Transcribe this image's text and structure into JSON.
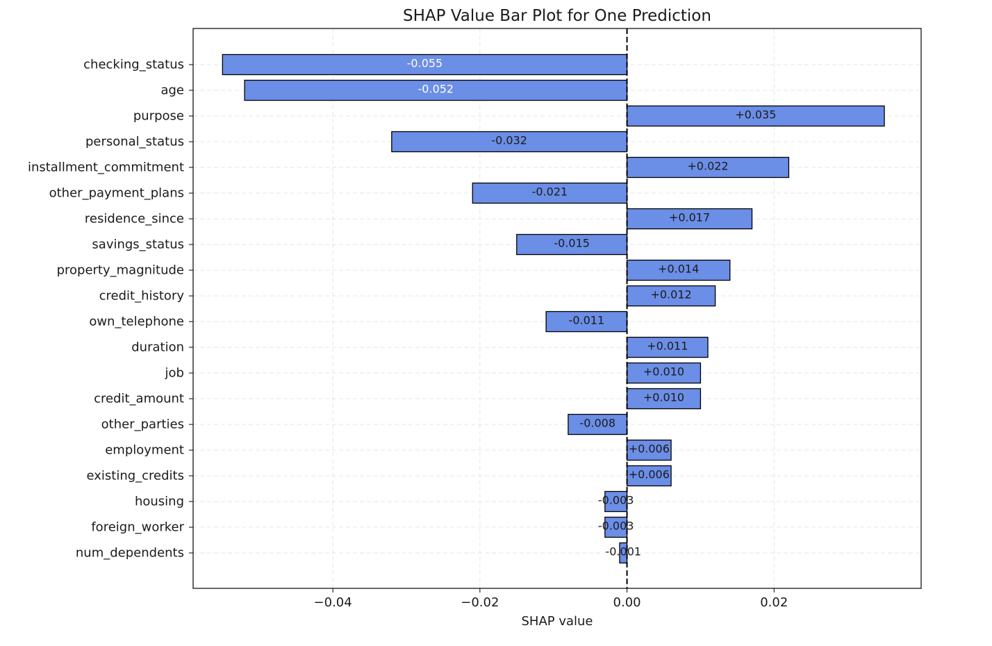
{
  "chart_data": {
    "type": "bar",
    "orientation": "horizontal",
    "title": "SHAP Value Bar Plot for One Prediction",
    "xlabel": "SHAP value",
    "ylabel": "",
    "xlim": [
      -0.059,
      0.04
    ],
    "xticks": [
      -0.04,
      -0.02,
      0.0,
      0.02
    ],
    "xtick_labels": [
      "−0.04",
      "−0.02",
      "0.00",
      "0.02"
    ],
    "grid": true,
    "zero_line": "dashed",
    "bar_color": "#6b8ee6",
    "bar_edge_color": "#000000",
    "categories": [
      "checking_status",
      "age",
      "purpose",
      "personal_status",
      "installment_commitment",
      "other_payment_plans",
      "residence_since",
      "savings_status",
      "property_magnitude",
      "credit_history",
      "own_telephone",
      "duration",
      "job",
      "credit_amount",
      "other_parties",
      "employment",
      "existing_credits",
      "housing",
      "foreign_worker",
      "num_dependents"
    ],
    "values": [
      -0.055,
      -0.052,
      0.035,
      -0.032,
      0.022,
      -0.021,
      0.017,
      -0.015,
      0.014,
      0.012,
      -0.011,
      0.011,
      0.01,
      0.01,
      -0.008,
      0.006,
      0.006,
      -0.003,
      -0.003,
      -0.001
    ],
    "value_labels": [
      "-0.055",
      "-0.052",
      "+0.035",
      "-0.032",
      "+0.022",
      "-0.021",
      "+0.017",
      "-0.015",
      "+0.014",
      "+0.012",
      "-0.011",
      "+0.011",
      "+0.010",
      "+0.010",
      "-0.008",
      "+0.006",
      "+0.006",
      "-0.003",
      "-0.003",
      "-0.001"
    ],
    "value_label_colors": [
      "#ffffff",
      "#ffffff",
      "#1a1a1a",
      "#1a1a1a",
      "#1a1a1a",
      "#1a1a1a",
      "#1a1a1a",
      "#1a1a1a",
      "#1a1a1a",
      "#1a1a1a",
      "#1a1a1a",
      "#1a1a1a",
      "#1a1a1a",
      "#1a1a1a",
      "#1a1a1a",
      "#1a1a1a",
      "#1a1a1a",
      "#1a1a1a",
      "#1a1a1a",
      "#1a1a1a"
    ]
  }
}
